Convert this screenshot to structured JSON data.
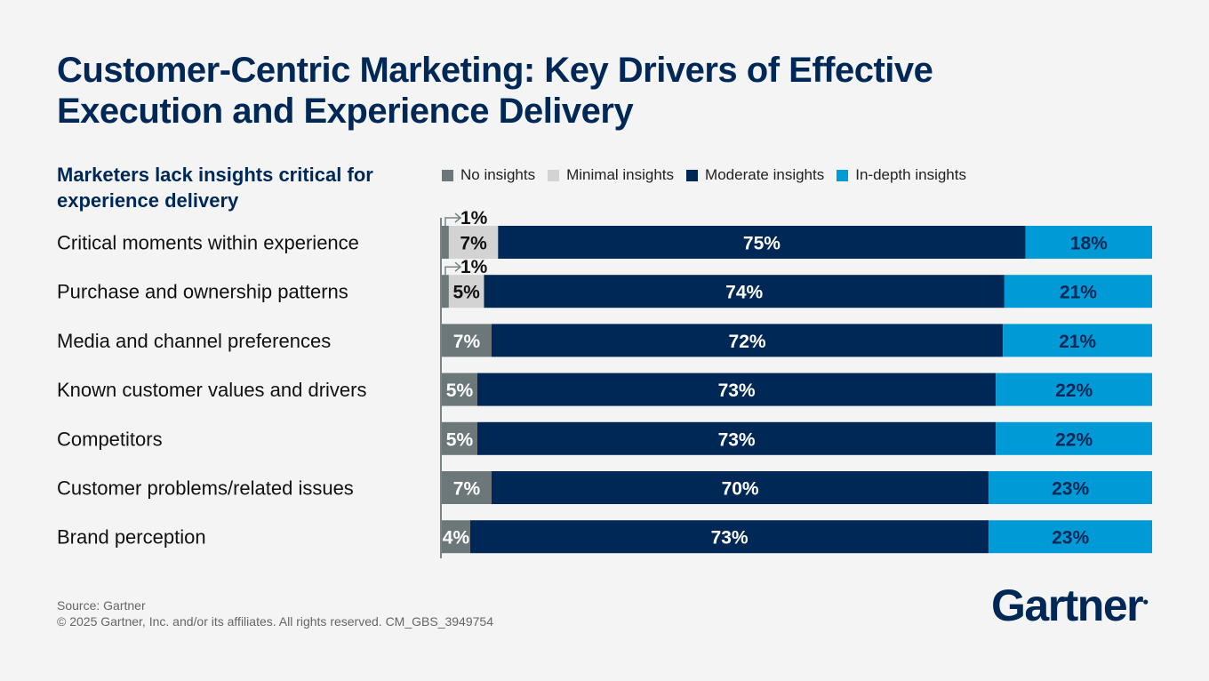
{
  "title": "Customer-Centric Marketing: Key Drivers of Effective Execution and Experience Delivery",
  "chart_data": {
    "type": "bar",
    "orientation": "horizontal",
    "stacked": true,
    "subtitle": "Marketers lack insights critical for experience delivery",
    "categories": [
      "Critical moments within experience",
      "Purchase and ownership patterns",
      "Media and channel preferences",
      "Known customer values and drivers",
      "Competitors",
      "Customer problems/related issues",
      "Brand perception"
    ],
    "series": [
      {
        "name": "No insights",
        "color": "#6b7778",
        "values": [
          1,
          1,
          7,
          5,
          5,
          7,
          4
        ]
      },
      {
        "name": "Minimal insights",
        "color": "#d3d3d3",
        "values": [
          7,
          5,
          0,
          0,
          0,
          0,
          0
        ]
      },
      {
        "name": "Moderate insights",
        "color": "#002856",
        "values": [
          75,
          74,
          72,
          73,
          73,
          70,
          73
        ]
      },
      {
        "name": "In-depth insights",
        "color": "#009ad7",
        "values": [
          18,
          21,
          21,
          22,
          22,
          23,
          23
        ]
      }
    ],
    "value_suffix": "%",
    "legend_position": "top",
    "grid": false
  },
  "footer": {
    "source": "Source: Gartner",
    "copyright": "© 2025 Gartner, Inc. and/or its affiliates. All rights reserved. CM_GBS_3949754"
  },
  "logo": "Gartner"
}
